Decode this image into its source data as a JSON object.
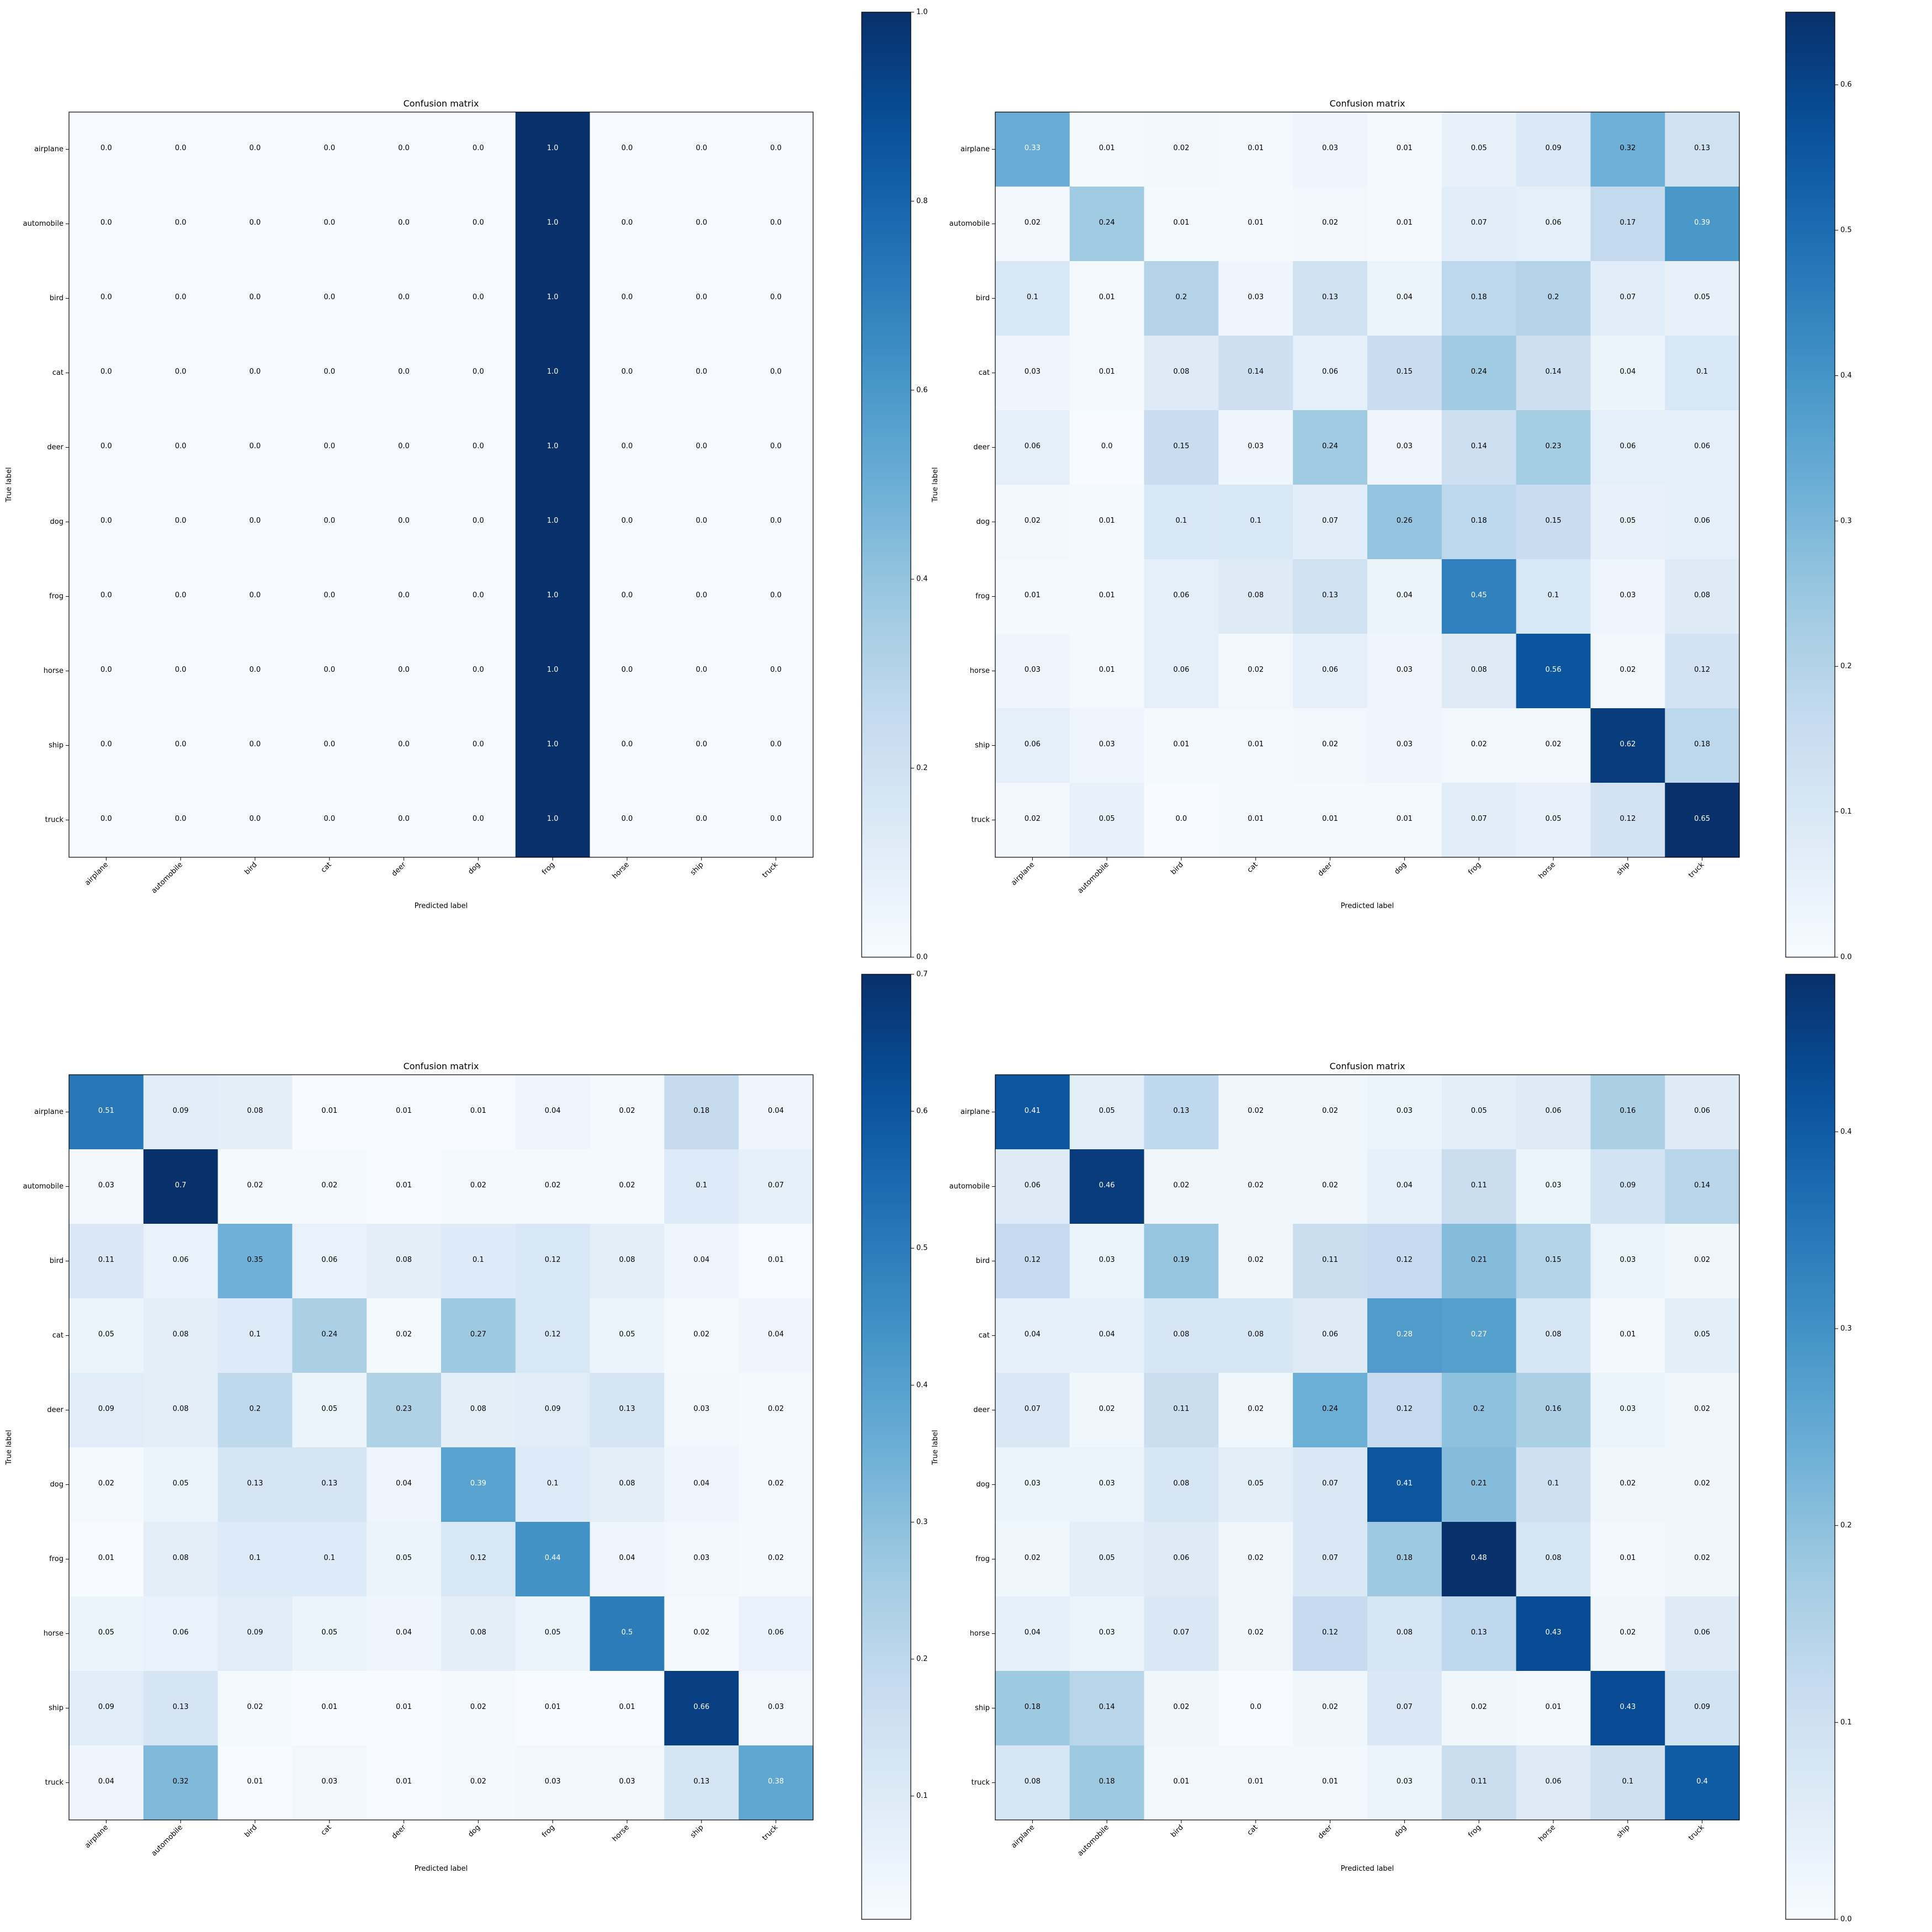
{
  "chart_data": [
    {
      "type": "heatmap",
      "title": "Confusion matrix",
      "xlabel": "Predicted label",
      "ylabel": "True label",
      "categories": [
        "airplane",
        "automobile",
        "bird",
        "cat",
        "deer",
        "dog",
        "frog",
        "horse",
        "ship",
        "truck"
      ],
      "values": [
        [
          0.0,
          0.0,
          0.0,
          0.0,
          0.0,
          0.0,
          1.0,
          0.0,
          0.0,
          0.0
        ],
        [
          0.0,
          0.0,
          0.0,
          0.0,
          0.0,
          0.0,
          1.0,
          0.0,
          0.0,
          0.0
        ],
        [
          0.0,
          0.0,
          0.0,
          0.0,
          0.0,
          0.0,
          1.0,
          0.0,
          0.0,
          0.0
        ],
        [
          0.0,
          0.0,
          0.0,
          0.0,
          0.0,
          0.0,
          1.0,
          0.0,
          0.0,
          0.0
        ],
        [
          0.0,
          0.0,
          0.0,
          0.0,
          0.0,
          0.0,
          1.0,
          0.0,
          0.0,
          0.0
        ],
        [
          0.0,
          0.0,
          0.0,
          0.0,
          0.0,
          0.0,
          1.0,
          0.0,
          0.0,
          0.0
        ],
        [
          0.0,
          0.0,
          0.0,
          0.0,
          0.0,
          0.0,
          1.0,
          0.0,
          0.0,
          0.0
        ],
        [
          0.0,
          0.0,
          0.0,
          0.0,
          0.0,
          0.0,
          1.0,
          0.0,
          0.0,
          0.0
        ],
        [
          0.0,
          0.0,
          0.0,
          0.0,
          0.0,
          0.0,
          1.0,
          0.0,
          0.0,
          0.0
        ],
        [
          0.0,
          0.0,
          0.0,
          0.0,
          0.0,
          0.0,
          1.0,
          0.0,
          0.0,
          0.0
        ]
      ],
      "labels": [
        [
          "0.0",
          "0.0",
          "0.0",
          "0.0",
          "0.0",
          "0.0",
          "1.0",
          "0.0",
          "0.0",
          "0.0"
        ],
        [
          "0.0",
          "0.0",
          "0.0",
          "0.0",
          "0.0",
          "0.0",
          "1.0",
          "0.0",
          "0.0",
          "0.0"
        ],
        [
          "0.0",
          "0.0",
          "0.0",
          "0.0",
          "0.0",
          "0.0",
          "1.0",
          "0.0",
          "0.0",
          "0.0"
        ],
        [
          "0.0",
          "0.0",
          "0.0",
          "0.0",
          "0.0",
          "0.0",
          "1.0",
          "0.0",
          "0.0",
          "0.0"
        ],
        [
          "0.0",
          "0.0",
          "0.0",
          "0.0",
          "0.0",
          "0.0",
          "1.0",
          "0.0",
          "0.0",
          "0.0"
        ],
        [
          "0.0",
          "0.0",
          "0.0",
          "0.0",
          "0.0",
          "0.0",
          "1.0",
          "0.0",
          "0.0",
          "0.0"
        ],
        [
          "0.0",
          "0.0",
          "0.0",
          "0.0",
          "0.0",
          "0.0",
          "1.0",
          "0.0",
          "0.0",
          "0.0"
        ],
        [
          "0.0",
          "0.0",
          "0.0",
          "0.0",
          "0.0",
          "0.0",
          "1.0",
          "0.0",
          "0.0",
          "0.0"
        ],
        [
          "0.0",
          "0.0",
          "0.0",
          "0.0",
          "0.0",
          "0.0",
          "1.0",
          "0.0",
          "0.0",
          "0.0"
        ],
        [
          "0.0",
          "0.0",
          "0.0",
          "0.0",
          "0.0",
          "0.0",
          "1.0",
          "0.0",
          "0.0",
          "0.0"
        ]
      ],
      "colorbar": {
        "min": 0.0,
        "max": 1.0,
        "ticks": [
          "0.0",
          "0.2",
          "0.4",
          "0.6",
          "0.8",
          "1.0"
        ]
      },
      "colormap": "Blues"
    },
    {
      "type": "heatmap",
      "title": "Confusion matrix",
      "xlabel": "Predicted label",
      "ylabel": "True label",
      "categories": [
        "airplane",
        "automobile",
        "bird",
        "cat",
        "deer",
        "dog",
        "frog",
        "horse",
        "ship",
        "truck"
      ],
      "values": [
        [
          0.33,
          0.01,
          0.02,
          0.01,
          0.03,
          0.01,
          0.05,
          0.09,
          0.32,
          0.13
        ],
        [
          0.02,
          0.24,
          0.01,
          0.01,
          0.02,
          0.01,
          0.07,
          0.06,
          0.17,
          0.39
        ],
        [
          0.1,
          0.01,
          0.2,
          0.03,
          0.13,
          0.04,
          0.18,
          0.2,
          0.07,
          0.05
        ],
        [
          0.03,
          0.01,
          0.08,
          0.14,
          0.06,
          0.15,
          0.24,
          0.14,
          0.04,
          0.1
        ],
        [
          0.06,
          0.0,
          0.15,
          0.03,
          0.24,
          0.03,
          0.14,
          0.23,
          0.06,
          0.06
        ],
        [
          0.02,
          0.01,
          0.1,
          0.1,
          0.07,
          0.26,
          0.18,
          0.15,
          0.05,
          0.06
        ],
        [
          0.01,
          0.01,
          0.06,
          0.08,
          0.13,
          0.04,
          0.45,
          0.1,
          0.03,
          0.08
        ],
        [
          0.03,
          0.01,
          0.06,
          0.02,
          0.06,
          0.03,
          0.08,
          0.56,
          0.02,
          0.12
        ],
        [
          0.06,
          0.03,
          0.01,
          0.01,
          0.02,
          0.03,
          0.02,
          0.02,
          0.62,
          0.18
        ],
        [
          0.02,
          0.05,
          0.0,
          0.01,
          0.01,
          0.01,
          0.07,
          0.05,
          0.12,
          0.65
        ]
      ],
      "labels": [
        [
          "0.33",
          "0.01",
          "0.02",
          "0.01",
          "0.03",
          "0.01",
          "0.05",
          "0.09",
          "0.32",
          "0.13"
        ],
        [
          "0.02",
          "0.24",
          "0.01",
          "0.01",
          "0.02",
          "0.01",
          "0.07",
          "0.06",
          "0.17",
          "0.39"
        ],
        [
          "0.1",
          "0.01",
          "0.2",
          "0.03",
          "0.13",
          "0.04",
          "0.18",
          "0.2",
          "0.07",
          "0.05"
        ],
        [
          "0.03",
          "0.01",
          "0.08",
          "0.14",
          "0.06",
          "0.15",
          "0.24",
          "0.14",
          "0.04",
          "0.1"
        ],
        [
          "0.06",
          "0.0",
          "0.15",
          "0.03",
          "0.24",
          "0.03",
          "0.14",
          "0.23",
          "0.06",
          "0.06"
        ],
        [
          "0.02",
          "0.01",
          "0.1",
          "0.1",
          "0.07",
          "0.26",
          "0.18",
          "0.15",
          "0.05",
          "0.06"
        ],
        [
          "0.01",
          "0.01",
          "0.06",
          "0.08",
          "0.13",
          "0.04",
          "0.45",
          "0.1",
          "0.03",
          "0.08"
        ],
        [
          "0.03",
          "0.01",
          "0.06",
          "0.02",
          "0.06",
          "0.03",
          "0.08",
          "0.56",
          "0.02",
          "0.12"
        ],
        [
          "0.06",
          "0.03",
          "0.01",
          "0.01",
          "0.02",
          "0.03",
          "0.02",
          "0.02",
          "0.62",
          "0.18"
        ],
        [
          "0.02",
          "0.05",
          "0.0",
          "0.01",
          "0.01",
          "0.01",
          "0.07",
          "0.05",
          "0.12",
          "0.65"
        ]
      ],
      "colorbar": {
        "min": 0.0,
        "max": 0.65,
        "ticks": [
          "0.0",
          "0.1",
          "0.2",
          "0.3",
          "0.4",
          "0.5",
          "0.6"
        ]
      },
      "colormap": "Blues"
    },
    {
      "type": "heatmap",
      "title": "Confusion matrix",
      "xlabel": "Predicted label",
      "ylabel": "True label",
      "categories": [
        "airplane",
        "automobile",
        "bird",
        "cat",
        "deer",
        "dog",
        "frog",
        "horse",
        "ship",
        "truck"
      ],
      "values": [
        [
          0.51,
          0.09,
          0.08,
          0.01,
          0.01,
          0.01,
          0.04,
          0.02,
          0.18,
          0.04
        ],
        [
          0.03,
          0.7,
          0.02,
          0.02,
          0.01,
          0.02,
          0.02,
          0.02,
          0.1,
          0.07
        ],
        [
          0.11,
          0.06,
          0.35,
          0.06,
          0.08,
          0.1,
          0.12,
          0.08,
          0.04,
          0.01
        ],
        [
          0.05,
          0.08,
          0.1,
          0.24,
          0.02,
          0.27,
          0.12,
          0.05,
          0.02,
          0.04
        ],
        [
          0.09,
          0.08,
          0.2,
          0.05,
          0.23,
          0.08,
          0.09,
          0.13,
          0.03,
          0.02
        ],
        [
          0.02,
          0.05,
          0.13,
          0.13,
          0.04,
          0.39,
          0.1,
          0.08,
          0.04,
          0.02
        ],
        [
          0.01,
          0.08,
          0.1,
          0.1,
          0.05,
          0.12,
          0.44,
          0.04,
          0.03,
          0.02
        ],
        [
          0.05,
          0.06,
          0.09,
          0.05,
          0.04,
          0.08,
          0.05,
          0.5,
          0.02,
          0.06
        ],
        [
          0.09,
          0.13,
          0.02,
          0.01,
          0.01,
          0.02,
          0.01,
          0.01,
          0.66,
          0.03
        ],
        [
          0.04,
          0.32,
          0.01,
          0.03,
          0.01,
          0.02,
          0.03,
          0.03,
          0.13,
          0.38
        ]
      ],
      "labels": [
        [
          "0.51",
          "0.09",
          "0.08",
          "0.01",
          "0.01",
          "0.01",
          "0.04",
          "0.02",
          "0.18",
          "0.04"
        ],
        [
          "0.03",
          "0.7",
          "0.02",
          "0.02",
          "0.01",
          "0.02",
          "0.02",
          "0.02",
          "0.1",
          "0.07"
        ],
        [
          "0.11",
          "0.06",
          "0.35",
          "0.06",
          "0.08",
          "0.1",
          "0.12",
          "0.08",
          "0.04",
          "0.01"
        ],
        [
          "0.05",
          "0.08",
          "0.1",
          "0.24",
          "0.02",
          "0.27",
          "0.12",
          "0.05",
          "0.02",
          "0.04"
        ],
        [
          "0.09",
          "0.08",
          "0.2",
          "0.05",
          "0.23",
          "0.08",
          "0.09",
          "0.13",
          "0.03",
          "0.02"
        ],
        [
          "0.02",
          "0.05",
          "0.13",
          "0.13",
          "0.04",
          "0.39",
          "0.1",
          "0.08",
          "0.04",
          "0.02"
        ],
        [
          "0.01",
          "0.08",
          "0.1",
          "0.1",
          "0.05",
          "0.12",
          "0.44",
          "0.04",
          "0.03",
          "0.02"
        ],
        [
          "0.05",
          "0.06",
          "0.09",
          "0.05",
          "0.04",
          "0.08",
          "0.05",
          "0.5",
          "0.02",
          "0.06"
        ],
        [
          "0.09",
          "0.13",
          "0.02",
          "0.01",
          "0.01",
          "0.02",
          "0.01",
          "0.01",
          "0.66",
          "0.03"
        ],
        [
          "0.04",
          "0.32",
          "0.01",
          "0.03",
          "0.01",
          "0.02",
          "0.03",
          "0.03",
          "0.13",
          "0.38"
        ]
      ],
      "colorbar": {
        "min": 0.01,
        "max": 0.7,
        "ticks": [
          "0.1",
          "0.2",
          "0.3",
          "0.4",
          "0.5",
          "0.6",
          "0.7"
        ]
      },
      "colormap": "Blues"
    },
    {
      "type": "heatmap",
      "title": "Confusion matrix",
      "xlabel": "Predicted label",
      "ylabel": "True label",
      "categories": [
        "airplane",
        "automobile",
        "bird",
        "cat",
        "deer",
        "dog",
        "frog",
        "horse",
        "ship",
        "truck"
      ],
      "values": [
        [
          0.41,
          0.05,
          0.13,
          0.02,
          0.02,
          0.03,
          0.05,
          0.06,
          0.16,
          0.06
        ],
        [
          0.06,
          0.46,
          0.02,
          0.02,
          0.02,
          0.04,
          0.11,
          0.03,
          0.09,
          0.14
        ],
        [
          0.12,
          0.03,
          0.19,
          0.02,
          0.11,
          0.12,
          0.21,
          0.15,
          0.03,
          0.02
        ],
        [
          0.04,
          0.04,
          0.08,
          0.08,
          0.06,
          0.28,
          0.27,
          0.08,
          0.01,
          0.05
        ],
        [
          0.07,
          0.02,
          0.11,
          0.02,
          0.24,
          0.12,
          0.2,
          0.16,
          0.03,
          0.02
        ],
        [
          0.03,
          0.03,
          0.08,
          0.05,
          0.07,
          0.41,
          0.21,
          0.1,
          0.02,
          0.02
        ],
        [
          0.02,
          0.05,
          0.06,
          0.02,
          0.07,
          0.18,
          0.48,
          0.08,
          0.01,
          0.02
        ],
        [
          0.04,
          0.03,
          0.07,
          0.02,
          0.12,
          0.08,
          0.13,
          0.43,
          0.02,
          0.06
        ],
        [
          0.18,
          0.14,
          0.02,
          0.0,
          0.02,
          0.07,
          0.02,
          0.01,
          0.43,
          0.09
        ],
        [
          0.08,
          0.18,
          0.01,
          0.01,
          0.01,
          0.03,
          0.11,
          0.06,
          0.1,
          0.4
        ]
      ],
      "labels": [
        [
          "0.41",
          "0.05",
          "0.13",
          "0.02",
          "0.02",
          "0.03",
          "0.05",
          "0.06",
          "0.16",
          "0.06"
        ],
        [
          "0.06",
          "0.46",
          "0.02",
          "0.02",
          "0.02",
          "0.04",
          "0.11",
          "0.03",
          "0.09",
          "0.14"
        ],
        [
          "0.12",
          "0.03",
          "0.19",
          "0.02",
          "0.11",
          "0.12",
          "0.21",
          "0.15",
          "0.03",
          "0.02"
        ],
        [
          "0.04",
          "0.04",
          "0.08",
          "0.08",
          "0.06",
          "0.28",
          "0.27",
          "0.08",
          "0.01",
          "0.05"
        ],
        [
          "0.07",
          "0.02",
          "0.11",
          "0.02",
          "0.24",
          "0.12",
          "0.2",
          "0.16",
          "0.03",
          "0.02"
        ],
        [
          "0.03",
          "0.03",
          "0.08",
          "0.05",
          "0.07",
          "0.41",
          "0.21",
          "0.1",
          "0.02",
          "0.02"
        ],
        [
          "0.02",
          "0.05",
          "0.06",
          "0.02",
          "0.07",
          "0.18",
          "0.48",
          "0.08",
          "0.01",
          "0.02"
        ],
        [
          "0.04",
          "0.03",
          "0.07",
          "0.02",
          "0.12",
          "0.08",
          "0.13",
          "0.43",
          "0.02",
          "0.06"
        ],
        [
          "0.18",
          "0.14",
          "0.02",
          "0.0",
          "0.02",
          "0.07",
          "0.02",
          "0.01",
          "0.43",
          "0.09"
        ],
        [
          "0.08",
          "0.18",
          "0.01",
          "0.01",
          "0.01",
          "0.03",
          "0.11",
          "0.06",
          "0.1",
          "0.4"
        ]
      ],
      "colorbar": {
        "min": 0.0,
        "max": 0.48,
        "ticks": [
          "0.0",
          "0.1",
          "0.2",
          "0.3",
          "0.4"
        ]
      },
      "colormap": "Blues"
    }
  ]
}
